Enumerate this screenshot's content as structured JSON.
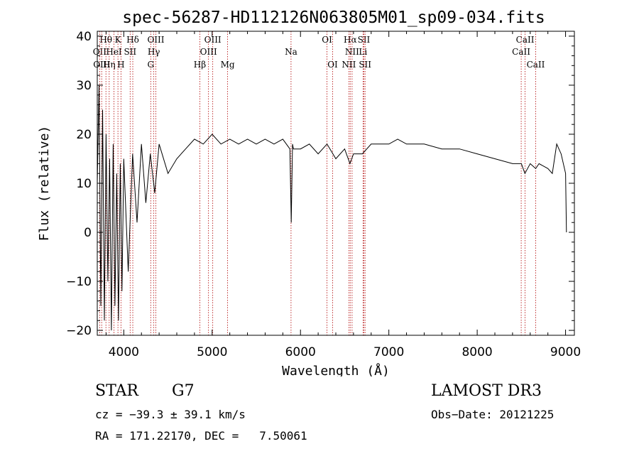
{
  "chart_data": {
    "type": "line",
    "title": "spec-56287-HD112126N063805M01_sp09-034.fits",
    "xlabel": "Wavelength (Å)",
    "ylabel": "Flux (relative)",
    "xlim": [
      3700,
      9100
    ],
    "ylim": [
      -21,
      41
    ],
    "xticks": [
      4000,
      5000,
      6000,
      7000,
      8000,
      9000
    ],
    "xtick_labels": [
      "4000",
      "5000",
      "6000",
      "7000",
      "8000",
      "9000"
    ],
    "yticks": [
      -20,
      -10,
      0,
      10,
      20,
      30,
      40
    ],
    "ytick_labels": [
      "−20",
      "−10",
      "0",
      "10",
      "20",
      "30",
      "40"
    ],
    "series": [
      {
        "name": "flux",
        "x": [
          3700,
          3720,
          3740,
          3760,
          3780,
          3800,
          3820,
          3840,
          3860,
          3880,
          3900,
          3920,
          3940,
          3960,
          3980,
          4000,
          4050,
          4100,
          4150,
          4200,
          4250,
          4300,
          4350,
          4400,
          4500,
          4600,
          4700,
          4800,
          4900,
          5000,
          5100,
          5200,
          5300,
          5400,
          5500,
          5600,
          5700,
          5800,
          5880,
          5895,
          5910,
          5920,
          6000,
          6100,
          6200,
          6300,
          6400,
          6500,
          6560,
          6600,
          6700,
          6800,
          6900,
          7000,
          7100,
          7200,
          7400,
          7600,
          7800,
          8000,
          8200,
          8400,
          8500,
          8540,
          8600,
          8662,
          8700,
          8800,
          8850,
          8900,
          8950,
          9000,
          9010
        ],
        "y": [
          10,
          30,
          -15,
          25,
          -18,
          20,
          -10,
          15,
          -20,
          18,
          -15,
          12,
          -18,
          14,
          -12,
          15,
          -8,
          16,
          2,
          18,
          6,
          16,
          8,
          18,
          12,
          15,
          17,
          19,
          18,
          20,
          18,
          19,
          18,
          19,
          18,
          19,
          18,
          19,
          17,
          2,
          18,
          17,
          17,
          18,
          16,
          18,
          15,
          17,
          14,
          16,
          16,
          18,
          18,
          18,
          19,
          18,
          18,
          17,
          17,
          16,
          15,
          14,
          14,
          12,
          14,
          13,
          14,
          13,
          12,
          18,
          16,
          12,
          0
        ]
      }
    ],
    "lines": [
      {
        "label": "Hθ",
        "x": 3798,
        "row": 1
      },
      {
        "label": "K",
        "x": 3934,
        "row": 1
      },
      {
        "label": "Hδ",
        "x": 4102,
        "row": 1
      },
      {
        "label": "OIII",
        "x": 4363,
        "row": 1
      },
      {
        "label": "OIII",
        "x": 5007,
        "row": 1
      },
      {
        "label": "Na",
        "x": 5893,
        "row": 2
      },
      {
        "label": "OI",
        "x": 6300,
        "row": 1
      },
      {
        "label": "Hα",
        "x": 6563,
        "row": 1
      },
      {
        "label": "SII",
        "x": 6717,
        "row": 1
      },
      {
        "label": "CaII",
        "x": 8542,
        "row": 1
      },
      {
        "label": "OII",
        "x": 3727,
        "row": 2
      },
      {
        "label": "HeI",
        "x": 3889,
        "row": 2
      },
      {
        "label": "SII",
        "x": 4072,
        "row": 2
      },
      {
        "label": "Hγ",
        "x": 4340,
        "row": 2
      },
      {
        "label": "OIII",
        "x": 4959,
        "row": 2
      },
      {
        "label": "NII",
        "x": 6584,
        "row": 2
      },
      {
        "label": "Li",
        "x": 6708,
        "row": 2
      },
      {
        "label": "CaII",
        "x": 8498,
        "row": 2
      },
      {
        "label": "OIII",
        "x": 3750,
        "row": 3
      },
      {
        "label": "Hη",
        "x": 3835,
        "row": 3
      },
      {
        "label": "H",
        "x": 3968,
        "row": 3
      },
      {
        "label": "G",
        "x": 4305,
        "row": 3
      },
      {
        "label": "Hβ",
        "x": 4861,
        "row": 3
      },
      {
        "label": "Mg",
        "x": 5175,
        "row": 3
      },
      {
        "label": "OI",
        "x": 6364,
        "row": 3
      },
      {
        "label": "NII",
        "x": 6548,
        "row": 3
      },
      {
        "label": "SII",
        "x": 6731,
        "row": 3
      },
      {
        "label": "CaII",
        "x": 8662,
        "row": 3
      }
    ]
  },
  "info": {
    "class": "STAR",
    "subclass": "G7",
    "survey": "LAMOST DR3",
    "cz": "cz = −39.3 ± 39.1 km/s",
    "obs_date": "Obs−Date: 20121225",
    "radec": "RA = 171.22170, DEC =   7.50061"
  }
}
